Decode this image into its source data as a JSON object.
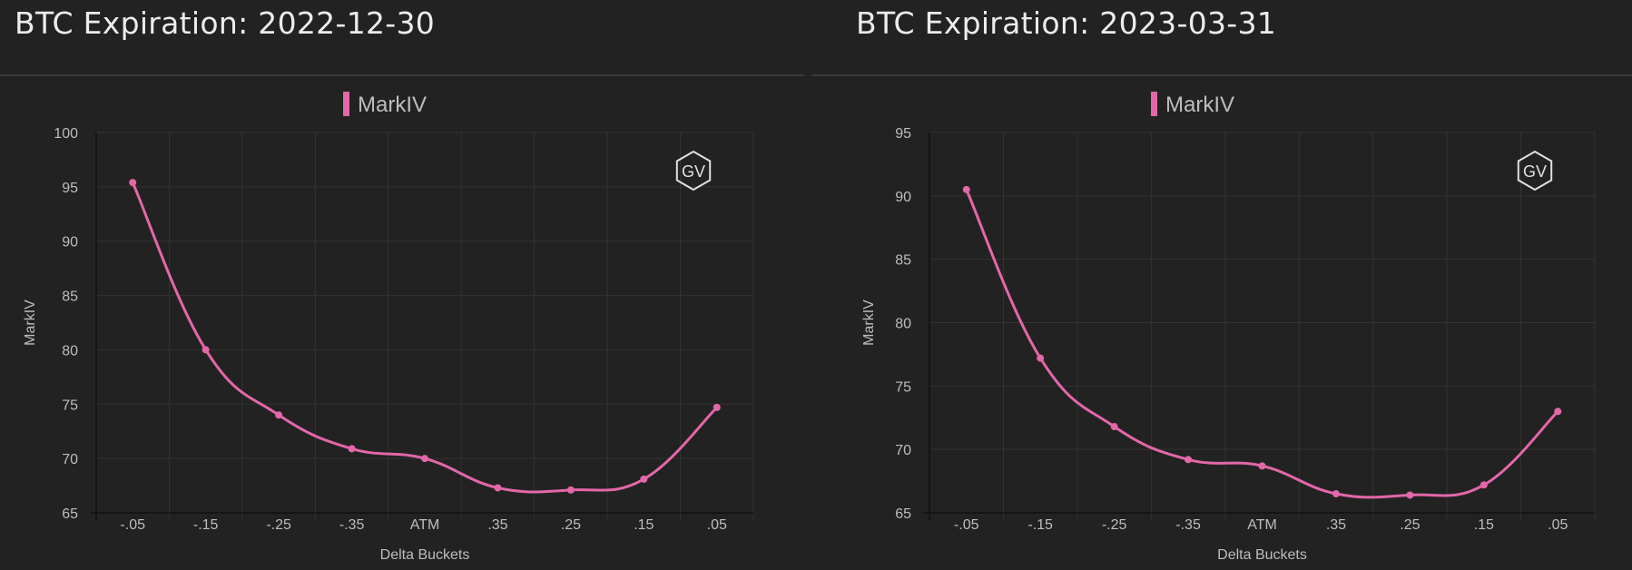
{
  "colors": {
    "background": "#222222",
    "series": "#e367a9",
    "grid": "#333333",
    "text": "#bdbdbd",
    "title": "#ececec"
  },
  "logo": {
    "text": "GV",
    "icon": "gv-hexagon-logo-icon"
  },
  "chart_data": [
    {
      "type": "line",
      "title": "BTC Expiration: 2022-12-30",
      "xlabel": "Delta Buckets",
      "ylabel": "MarkIV",
      "categories": [
        "-.05",
        "-.15",
        "-.25",
        "-.35",
        "ATM",
        ".35",
        ".25",
        ".15",
        ".05"
      ],
      "series": [
        {
          "name": "MarkIV",
          "values": [
            95.4,
            80.0,
            74.0,
            70.9,
            70.0,
            67.3,
            67.1,
            68.1,
            74.7
          ]
        }
      ],
      "ylim": [
        65,
        100
      ],
      "yticks": [
        65,
        70,
        75,
        80,
        85,
        90,
        95,
        100
      ],
      "grid": true,
      "legend": "top-center"
    },
    {
      "type": "line",
      "title": "BTC Expiration: 2023-03-31",
      "xlabel": "Delta Buckets",
      "ylabel": "MarkIV",
      "categories": [
        "-.05",
        "-.15",
        "-.25",
        "-.35",
        "ATM",
        ".35",
        ".25",
        ".15",
        ".05"
      ],
      "series": [
        {
          "name": "MarkIV",
          "values": [
            90.5,
            77.2,
            71.8,
            69.2,
            68.7,
            66.5,
            66.4,
            67.2,
            73.0
          ]
        }
      ],
      "ylim": [
        65,
        95
      ],
      "yticks": [
        65,
        70,
        75,
        80,
        85,
        90,
        95
      ],
      "grid": true,
      "legend": "top-center"
    }
  ]
}
